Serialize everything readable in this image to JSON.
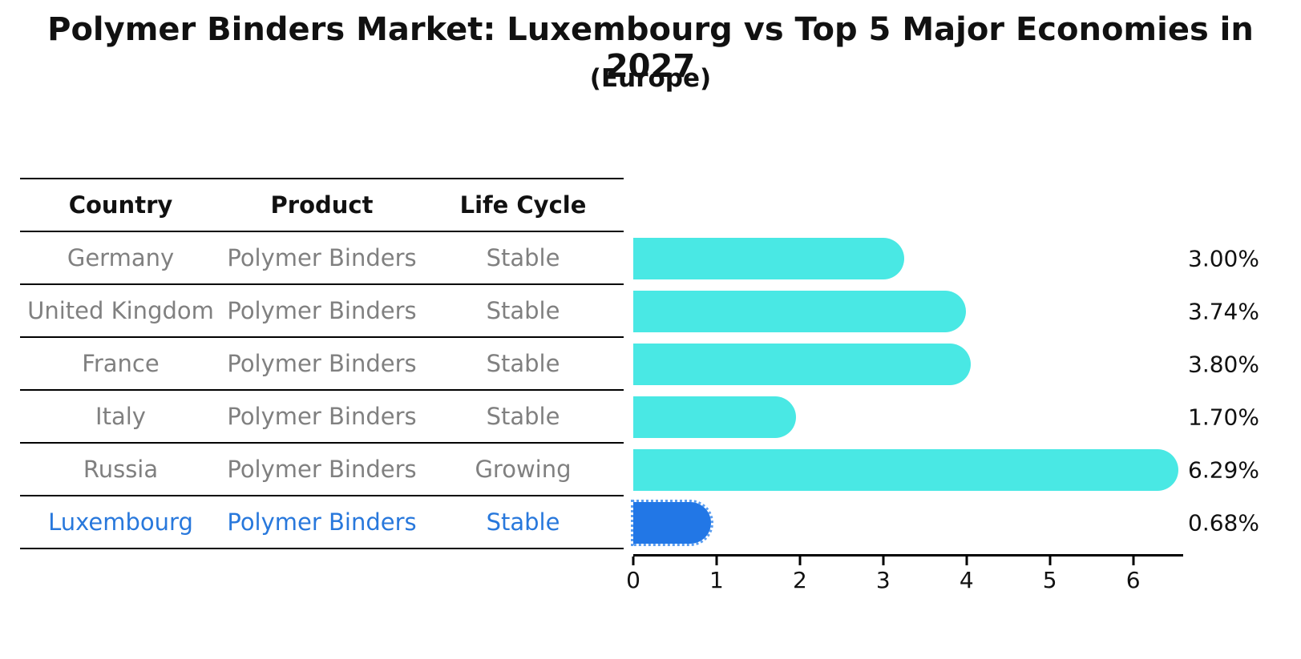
{
  "title": "Polymer Binders Market: Luxembourg vs Top 5 Major Economies in 2027",
  "subtitle": "(Europe)",
  "table": {
    "headers": [
      "Country",
      "Product",
      "Life Cycle"
    ],
    "rows": [
      {
        "country": "Germany",
        "product": "Polymer Binders",
        "life_cycle": "Stable",
        "highlight": false
      },
      {
        "country": "United Kingdom",
        "product": "Polymer Binders",
        "life_cycle": "Stable",
        "highlight": false
      },
      {
        "country": "France",
        "product": "Polymer Binders",
        "life_cycle": "Stable",
        "highlight": false
      },
      {
        "country": "Italy",
        "product": "Polymer Binders",
        "life_cycle": "Stable",
        "highlight": false
      },
      {
        "country": "Russia",
        "product": "Polymer Binders",
        "life_cycle": "Growing",
        "highlight": false
      },
      {
        "country": "Luxembourg",
        "product": "Polymer Binders",
        "life_cycle": "Stable",
        "highlight": true
      }
    ]
  },
  "chart_data": {
    "type": "bar",
    "orientation": "horizontal",
    "categories": [
      "Germany",
      "United Kingdom",
      "France",
      "Italy",
      "Russia",
      "Luxembourg"
    ],
    "values": [
      3.0,
      3.74,
      3.8,
      1.7,
      6.29,
      0.68
    ],
    "value_labels": [
      "3.00%",
      "3.74%",
      "3.80%",
      "1.70%",
      "6.29%",
      "0.68%"
    ],
    "title": "Polymer Binders Market: Luxembourg vs Top 5 Major Economies in 2027",
    "subtitle": "(Europe)",
    "xlabel": "",
    "ylabel": "",
    "xlim": [
      0,
      6.6
    ],
    "x_ticks": [
      0,
      1,
      2,
      3,
      4,
      5,
      6
    ],
    "grid": false,
    "legend": false,
    "bar_color": "#49e8e4",
    "highlight_color": "#2277e6",
    "highlight_index": 5
  },
  "colors": {
    "background": "#ffffff",
    "table_line": "#000000",
    "row_text": "#808080",
    "highlight_text": "#2878dc",
    "label_text": "#111111"
  }
}
